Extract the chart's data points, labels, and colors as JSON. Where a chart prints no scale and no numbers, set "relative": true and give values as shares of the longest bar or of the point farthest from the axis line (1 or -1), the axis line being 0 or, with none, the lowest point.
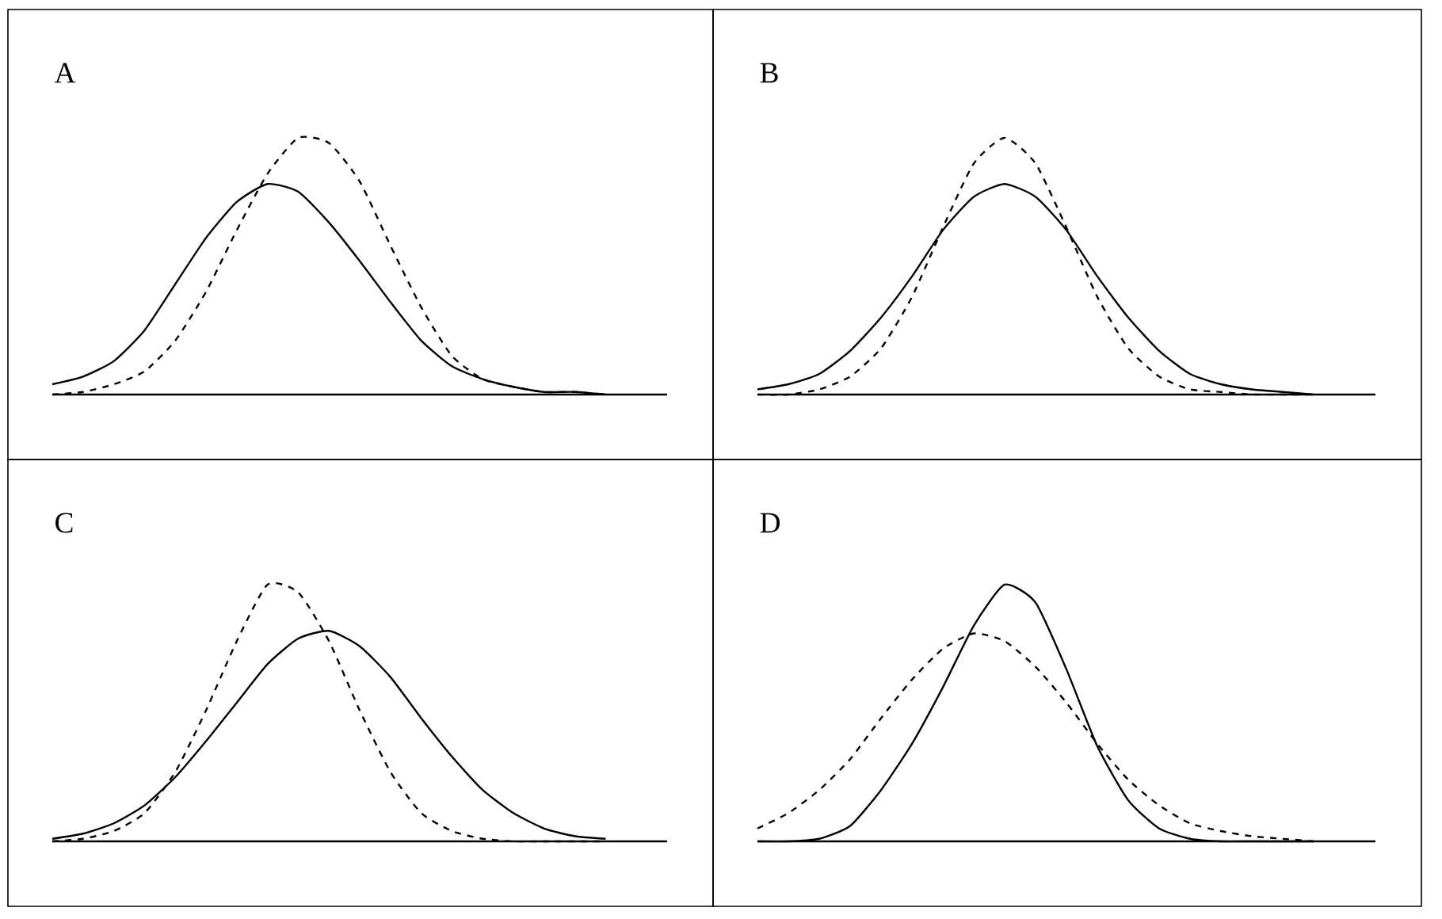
{
  "chart_data": [
    {
      "type": "line",
      "title": "A",
      "relative": true,
      "categories": [
        null,
        null,
        null,
        null,
        null,
        null,
        null,
        null,
        null,
        null,
        null,
        null,
        null,
        null,
        null,
        null,
        null,
        null,
        null,
        null,
        null
      ],
      "series": [
        {
          "color": "#000000",
          "line_style": "solid",
          "values": [
            0.04,
            0.07,
            0.13,
            0.25,
            0.43,
            0.61,
            0.75,
            0.82,
            0.79,
            0.67,
            0.52,
            0.36,
            0.21,
            0.11,
            0.06,
            0.03,
            0.01,
            0.01,
            0,
            null,
            null
          ]
        },
        {
          "color": "#000000",
          "line_style": "dashed",
          "values": [
            0,
            0.01,
            0.04,
            0.09,
            0.21,
            0.4,
            0.64,
            0.86,
            1,
            0.98,
            0.83,
            0.58,
            0.34,
            0.15,
            0.06,
            0.03,
            0.01,
            0.01,
            0,
            null,
            null
          ]
        }
      ]
    },
    {
      "type": "line",
      "title": "B",
      "relative": true,
      "categories": [
        null,
        null,
        null,
        null,
        null,
        null,
        null,
        null,
        null,
        null,
        null,
        null,
        null,
        null,
        null,
        null,
        null,
        null,
        null,
        null,
        null
      ],
      "series": [
        {
          "color": "#000000",
          "line_style": "solid",
          "values": [
            0.02,
            0.04,
            0.08,
            0.17,
            0.3,
            0.46,
            0.64,
            0.77,
            0.82,
            0.77,
            0.64,
            0.46,
            0.3,
            0.17,
            0.08,
            0.04,
            0.02,
            0.01,
            0,
            null,
            null
          ]
        },
        {
          "color": "#000000",
          "line_style": "dashed",
          "values": [
            0,
            0,
            0.02,
            0.07,
            0.18,
            0.38,
            0.65,
            0.9,
            1,
            0.9,
            0.65,
            0.38,
            0.18,
            0.07,
            0.02,
            0.01,
            0,
            0,
            0,
            null,
            null
          ]
        }
      ]
    },
    {
      "type": "line",
      "title": "C",
      "relative": true,
      "categories": [
        null,
        null,
        null,
        null,
        null,
        null,
        null,
        null,
        null,
        null,
        null,
        null,
        null,
        null,
        null,
        null,
        null,
        null,
        null,
        null,
        null
      ],
      "series": [
        {
          "color": "#000000",
          "line_style": "solid",
          "values": [
            0.01,
            0.03,
            0.07,
            0.14,
            0.25,
            0.39,
            0.54,
            0.69,
            0.79,
            0.82,
            0.76,
            0.64,
            0.48,
            0.33,
            0.2,
            0.11,
            0.05,
            0.02,
            0.01,
            null,
            null
          ]
        },
        {
          "color": "#000000",
          "line_style": "dashed",
          "values": [
            0,
            0.01,
            0.04,
            0.11,
            0.27,
            0.51,
            0.78,
            1,
            0.97,
            0.78,
            0.51,
            0.27,
            0.11,
            0.04,
            0.01,
            0,
            0,
            0,
            0,
            null,
            null
          ]
        }
      ]
    },
    {
      "type": "line",
      "title": "D",
      "relative": true,
      "categories": [
        null,
        null,
        null,
        null,
        null,
        null,
        null,
        null,
        null,
        null,
        null,
        null,
        null,
        null,
        null,
        null,
        null,
        null,
        null,
        null,
        null
      ],
      "series": [
        {
          "color": "#000000",
          "line_style": "solid",
          "values": [
            0,
            0,
            0.01,
            0.06,
            0.2,
            0.38,
            0.6,
            0.84,
            1,
            0.93,
            0.67,
            0.37,
            0.16,
            0.05,
            0.01,
            0,
            0,
            0,
            0,
            null,
            null
          ]
        },
        {
          "color": "#000000",
          "line_style": "dashed",
          "values": [
            0.05,
            0.11,
            0.2,
            0.32,
            0.48,
            0.63,
            0.75,
            0.81,
            0.78,
            0.68,
            0.54,
            0.38,
            0.24,
            0.14,
            0.07,
            0.04,
            0.02,
            0.01,
            0,
            null,
            null
          ]
        }
      ]
    }
  ]
}
